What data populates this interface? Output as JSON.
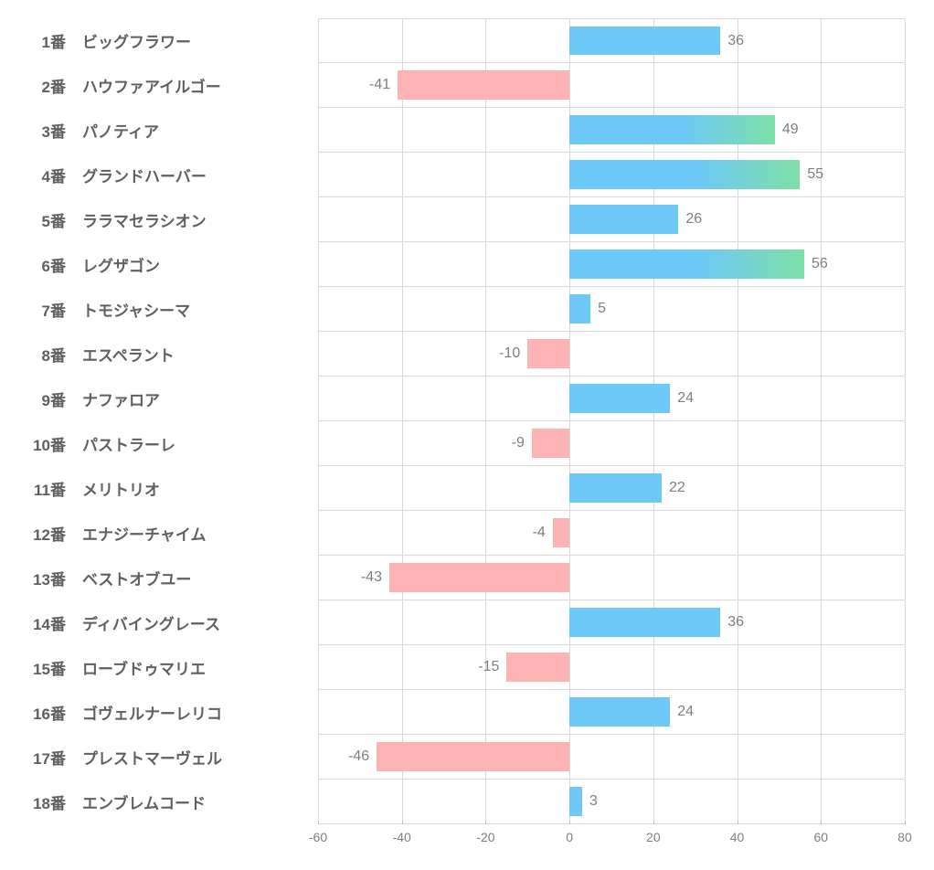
{
  "chart": {
    "type": "bar-horizontal-diverging",
    "xlim": [
      -60,
      80
    ],
    "xticks": [
      -60,
      -40,
      -20,
      0,
      20,
      40,
      60,
      80
    ],
    "gridline_color": "#d9d9d9",
    "background_color": "#ffffff",
    "bar_height_ratio": 0.67,
    "label_fontsize": 17,
    "label_color": "#5f5f5f",
    "value_fontsize": 16,
    "value_color": "#7f7f7f",
    "tick_fontsize": 14,
    "tick_color": "#7f7f7f",
    "positive_color_solid": "#6ec8f8",
    "negative_color": "#fbb3b3",
    "gradient_threshold": 40,
    "gradient": {
      "from": "#6ec8f8",
      "to": "#7de0a7"
    },
    "entries": [
      {
        "num": "1番",
        "name": "ビッグフラワー",
        "value": 36
      },
      {
        "num": "2番",
        "name": "ハウファアイルゴー",
        "value": -41
      },
      {
        "num": "3番",
        "name": "パノティア",
        "value": 49
      },
      {
        "num": "4番",
        "name": "グランドハーバー",
        "value": 55
      },
      {
        "num": "5番",
        "name": "ララマセラシオン",
        "value": 26
      },
      {
        "num": "6番",
        "name": "レグザゴン",
        "value": 56
      },
      {
        "num": "7番",
        "name": "トモジャシーマ",
        "value": 5
      },
      {
        "num": "8番",
        "name": "エスペラント",
        "value": -10
      },
      {
        "num": "9番",
        "name": "ナファロア",
        "value": 24
      },
      {
        "num": "10番",
        "name": "パストラーレ",
        "value": -9
      },
      {
        "num": "11番",
        "name": "メリトリオ",
        "value": 22
      },
      {
        "num": "12番",
        "name": "エナジーチャイム",
        "value": -4
      },
      {
        "num": "13番",
        "name": "ベストオブユー",
        "value": -43
      },
      {
        "num": "14番",
        "name": "ディバイングレース",
        "value": 36
      },
      {
        "num": "15番",
        "name": "ローブドゥマリエ",
        "value": -15
      },
      {
        "num": "16番",
        "name": "ゴヴェルナーレリコ",
        "value": 24
      },
      {
        "num": "17番",
        "name": "プレストマーヴェル",
        "value": -46
      },
      {
        "num": "18番",
        "name": "エンブレムコード",
        "value": 3
      }
    ]
  }
}
